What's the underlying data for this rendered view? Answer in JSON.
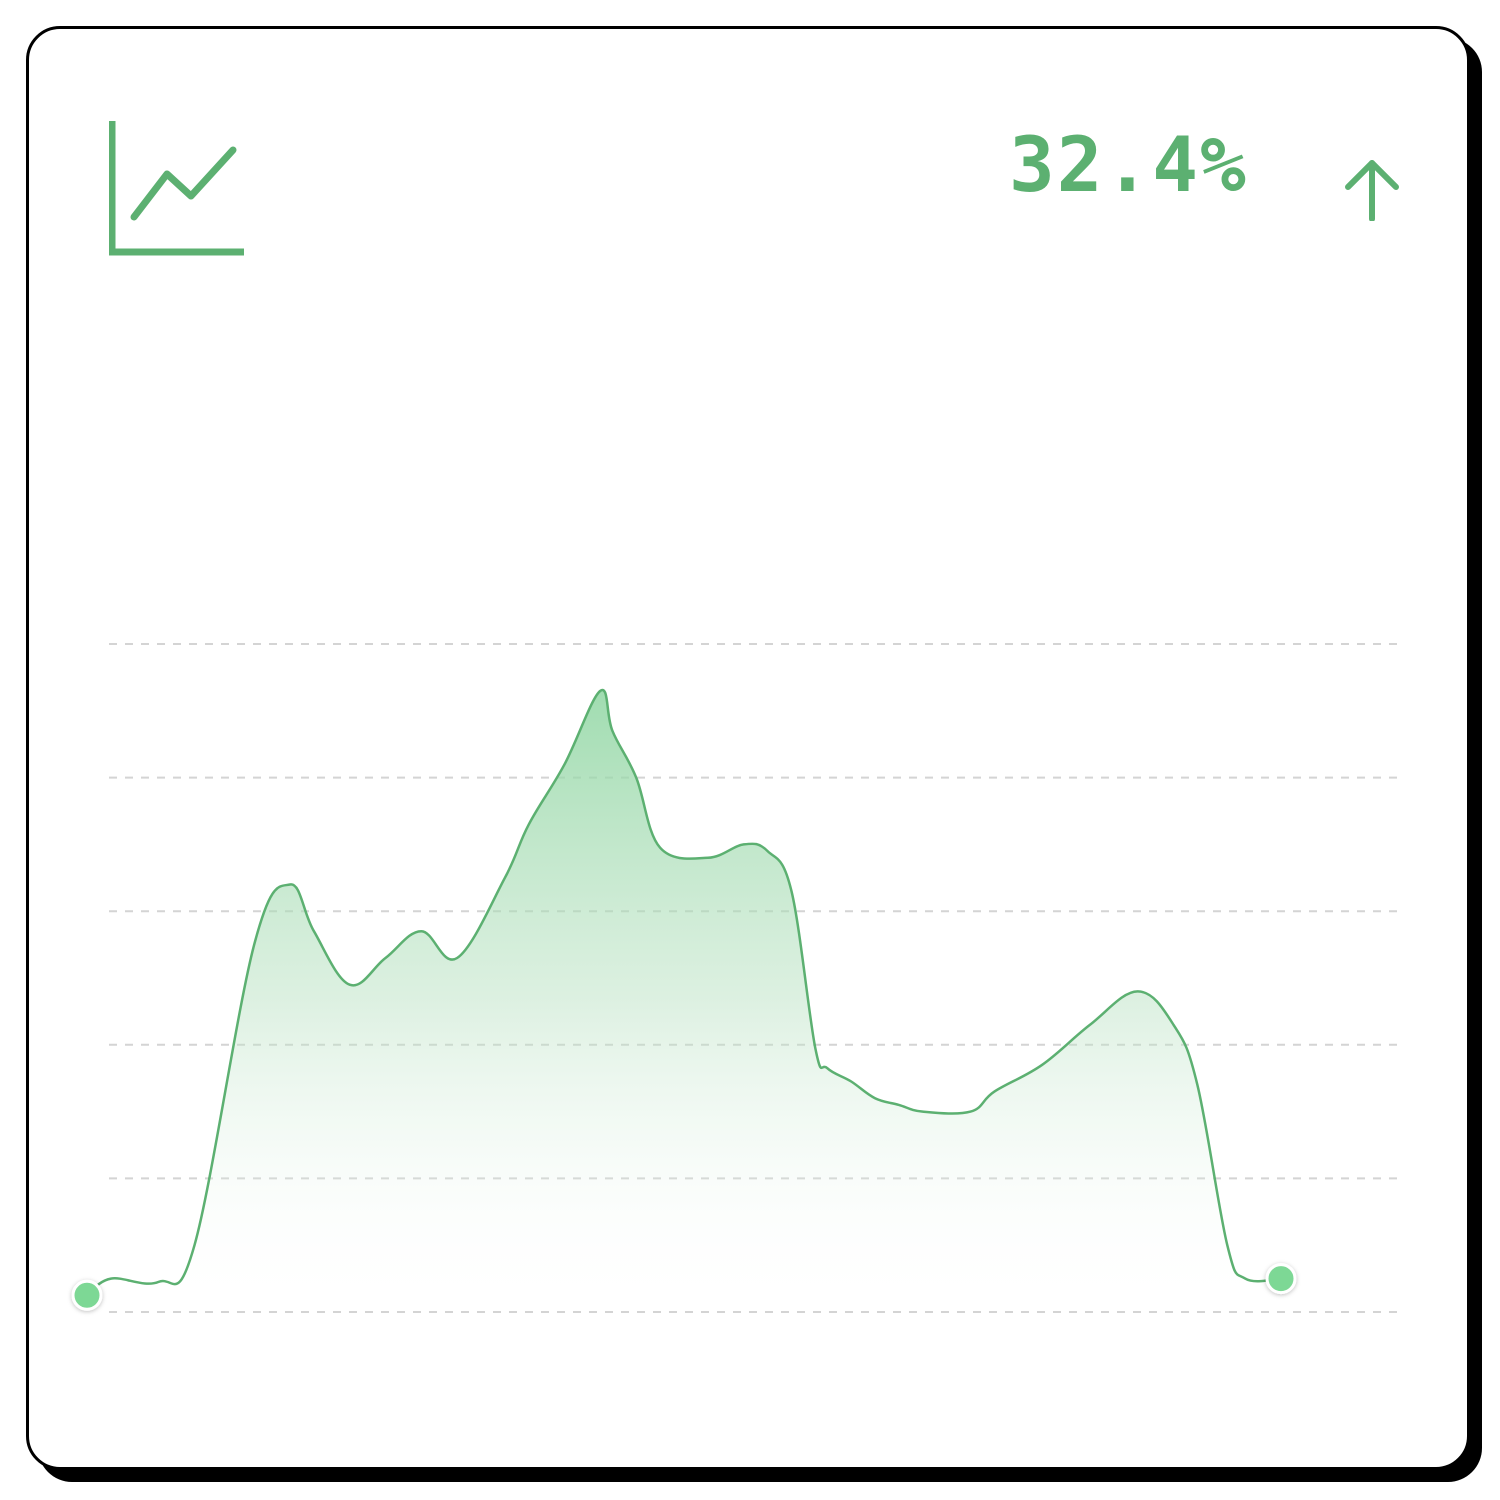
{
  "card": {
    "icon": "line-chart-icon",
    "change_value": "32.4%",
    "trend_icon": "arrow-up-icon",
    "accent_color": "#5cb071",
    "dot_color": "#7dd895"
  },
  "chart_data": {
    "type": "area",
    "title": "",
    "xlabel": "",
    "ylabel": "",
    "x": [
      0.0,
      0.02,
      0.06,
      0.09,
      0.14,
      0.17,
      0.19,
      0.22,
      0.25,
      0.28,
      0.31,
      0.35,
      0.37,
      0.4,
      0.43,
      0.44,
      0.46,
      0.48,
      0.52,
      0.55,
      0.57,
      0.59,
      0.61,
      0.62,
      0.64,
      0.66,
      0.68,
      0.7,
      0.74,
      0.76,
      0.8,
      0.84,
      0.88,
      0.91,
      0.93,
      0.955,
      0.97,
      1.0
    ],
    "y": [
      0.25,
      0.5,
      0.45,
      1.0,
      5.5,
      6.4,
      5.7,
      4.9,
      5.3,
      5.7,
      5.3,
      6.5,
      7.3,
      8.2,
      9.3,
      8.7,
      8.0,
      6.95,
      6.8,
      7.0,
      6.9,
      6.3,
      3.95,
      3.65,
      3.45,
      3.2,
      3.1,
      3.0,
      3.0,
      3.3,
      3.7,
      4.3,
      4.8,
      4.3,
      3.4,
      1.0,
      0.5,
      0.5
    ],
    "ylim": [
      0,
      10
    ],
    "grid": true,
    "grid_lines": 6,
    "line_color": "#5cb071",
    "fill_color": "#8fd6a2",
    "endpoint_markers": true
  }
}
